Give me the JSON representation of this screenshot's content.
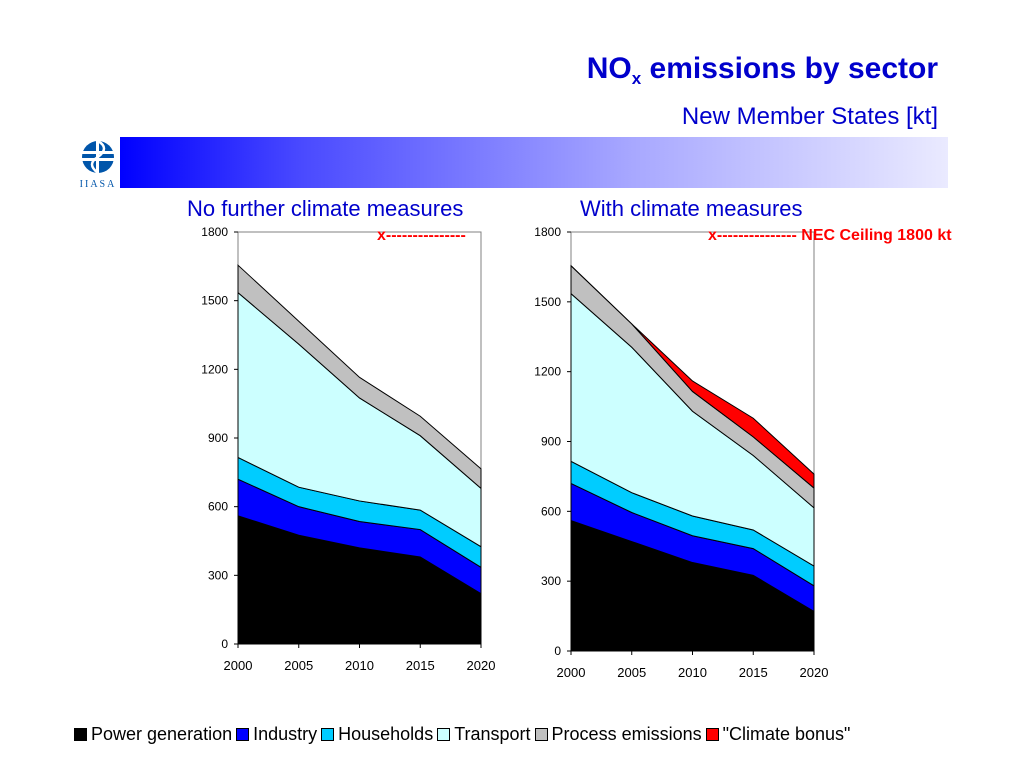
{
  "header": {
    "title_main": "NO",
    "title_sub": "x",
    "title_rest": " emissions by sector",
    "subtitle": "New Member States [kt]"
  },
  "logo": {
    "text": "IIASA",
    "icon": "iiasa-logo"
  },
  "colors": {
    "power": "#000000",
    "industry": "#0000ff",
    "households": "#00ccff",
    "transport": "#ccffff",
    "process": "#c0c0c0",
    "bonus": "#ff0000",
    "title": "#0000cc"
  },
  "legend": [
    {
      "key": "power",
      "label": "Power generation"
    },
    {
      "key": "industry",
      "label": "Industry"
    },
    {
      "key": "households",
      "label": "Households"
    },
    {
      "key": "transport",
      "label": "Transport"
    },
    {
      "key": "process",
      "label": "Process emissions"
    },
    {
      "key": "bonus",
      "label": "\"Climate bonus\""
    }
  ],
  "chart_data": [
    {
      "type": "area",
      "title": "No further climate measures",
      "annotation": "x---------------",
      "x": [
        "2000",
        "2005",
        "2010",
        "2015",
        "2020"
      ],
      "ylim": [
        0,
        1800
      ],
      "yticks": [
        "0",
        "300",
        "600",
        "900",
        "1200",
        "1500",
        "1800"
      ],
      "stacked": true,
      "series": [
        {
          "name": "Power generation",
          "key": "power",
          "values": [
            560,
            475,
            420,
            380,
            220
          ]
        },
        {
          "name": "Industry",
          "key": "industry",
          "values": [
            160,
            125,
            115,
            120,
            115
          ]
        },
        {
          "name": "Households",
          "key": "households",
          "values": [
            95,
            85,
            90,
            85,
            90
          ]
        },
        {
          "name": "Transport",
          "key": "transport",
          "values": [
            720,
            625,
            450,
            325,
            255
          ]
        },
        {
          "name": "Process emissions",
          "key": "process",
          "values": [
            120,
            100,
            90,
            85,
            85
          ]
        }
      ]
    },
    {
      "type": "area",
      "title": "With climate measures",
      "annotation": "x--------------- NEC Ceiling 1800 kt",
      "x": [
        "2000",
        "2005",
        "2010",
        "2015",
        "2020"
      ],
      "ylim": [
        0,
        1800
      ],
      "yticks": [
        "0",
        "300",
        "600",
        "900",
        "1200",
        "1500",
        "1800"
      ],
      "stacked": true,
      "series": [
        {
          "name": "Power generation",
          "key": "power",
          "values": [
            560,
            470,
            380,
            325,
            170
          ]
        },
        {
          "name": "Industry",
          "key": "industry",
          "values": [
            160,
            125,
            115,
            115,
            110
          ]
        },
        {
          "name": "Households",
          "key": "households",
          "values": [
            95,
            85,
            85,
            80,
            85
          ]
        },
        {
          "name": "Transport",
          "key": "transport",
          "values": [
            720,
            625,
            450,
            320,
            250
          ]
        },
        {
          "name": "Process emissions",
          "key": "process",
          "values": [
            120,
            100,
            85,
            80,
            85
          ]
        },
        {
          "name": "\"Climate bonus\"",
          "key": "bonus",
          "values": [
            0,
            0,
            45,
            80,
            60
          ]
        }
      ]
    }
  ]
}
